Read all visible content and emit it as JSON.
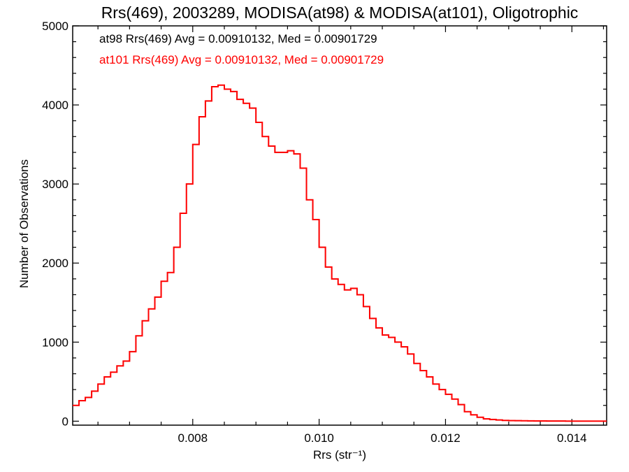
{
  "chart_data": {
    "type": "line",
    "title": "Rrs(469), 2003289, MODISA(at98) & MODISA(at101), Oligotrophic",
    "xlabel": "Rrs (str⁻¹)",
    "ylabel": "Number of Observations",
    "xlim": [
      0.0061,
      0.01455
    ],
    "ylim": [
      -50,
      5000
    ],
    "xticks": [
      0.008,
      0.01,
      0.012,
      0.014
    ],
    "xtick_labels": [
      "0.008",
      "0.010",
      "0.012",
      "0.014"
    ],
    "yticks": [
      0,
      1000,
      2000,
      3000,
      4000,
      5000
    ],
    "ytick_labels": [
      "0",
      "1000",
      "2000",
      "3000",
      "4000",
      "5000"
    ],
    "grid": false,
    "annotations": [
      {
        "text": "at98 Rrs(469) Avg = 0.00910132, Med = 0.00901729",
        "color": "#000000"
      },
      {
        "text": "at101 Rrs(469) Avg = 0.00910132, Med = 0.00901729",
        "color": "#ff0000"
      }
    ],
    "series": [
      {
        "color_hex": "#000000",
        "step": true,
        "x": [
          0.0061,
          0.0062,
          0.0063,
          0.0064,
          0.0065,
          0.0066,
          0.0067,
          0.0068,
          0.0069,
          0.007,
          0.0071,
          0.0072,
          0.0073,
          0.0074,
          0.0075,
          0.0076,
          0.0077,
          0.0078,
          0.0079,
          0.008,
          0.0081,
          0.0082,
          0.0083,
          0.0084,
          0.0085,
          0.0086,
          0.0087,
          0.0088,
          0.0089,
          0.009,
          0.0091,
          0.0092,
          0.0093,
          0.0094,
          0.0095,
          0.0096,
          0.0097,
          0.0098,
          0.0099,
          0.01,
          0.0101,
          0.0102,
          0.0103,
          0.0104,
          0.0105,
          0.0106,
          0.0107,
          0.0108,
          0.0109,
          0.011,
          0.0111,
          0.0112,
          0.0113,
          0.0114,
          0.0115,
          0.0116,
          0.0117,
          0.0118,
          0.0119,
          0.012,
          0.0121,
          0.0122,
          0.0123,
          0.0124,
          0.0125,
          0.0126,
          0.0127,
          0.0128,
          0.0129,
          0.013,
          0.0131,
          0.0132,
          0.0133,
          0.0134,
          0.0135,
          0.0136,
          0.0137,
          0.0138,
          0.0139,
          0.014,
          0.0141,
          0.0142,
          0.0143,
          0.0144,
          0.0145
        ],
        "y": [
          200,
          260,
          300,
          380,
          470,
          560,
          620,
          700,
          760,
          880,
          1080,
          1270,
          1420,
          1570,
          1770,
          1880,
          2200,
          2630,
          3000,
          3500,
          3850,
          4050,
          4230,
          4250,
          4200,
          4170,
          4070,
          4020,
          3960,
          3780,
          3600,
          3480,
          3400,
          3400,
          3420,
          3380,
          3200,
          2800,
          2550,
          2200,
          1950,
          1800,
          1730,
          1660,
          1680,
          1600,
          1450,
          1300,
          1180,
          1090,
          1060,
          1000,
          940,
          850,
          730,
          640,
          560,
          470,
          400,
          340,
          280,
          210,
          120,
          80,
          50,
          30,
          22,
          15,
          10,
          8,
          6,
          5,
          4,
          3,
          3,
          2,
          2,
          2,
          1,
          1,
          1,
          1,
          1,
          1,
          1
        ]
      },
      {
        "color_hex": "#ff0000",
        "step": true,
        "x": [
          0.0061,
          0.0062,
          0.0063,
          0.0064,
          0.0065,
          0.0066,
          0.0067,
          0.0068,
          0.0069,
          0.007,
          0.0071,
          0.0072,
          0.0073,
          0.0074,
          0.0075,
          0.0076,
          0.0077,
          0.0078,
          0.0079,
          0.008,
          0.0081,
          0.0082,
          0.0083,
          0.0084,
          0.0085,
          0.0086,
          0.0087,
          0.0088,
          0.0089,
          0.009,
          0.0091,
          0.0092,
          0.0093,
          0.0094,
          0.0095,
          0.0096,
          0.0097,
          0.0098,
          0.0099,
          0.01,
          0.0101,
          0.0102,
          0.0103,
          0.0104,
          0.0105,
          0.0106,
          0.0107,
          0.0108,
          0.0109,
          0.011,
          0.0111,
          0.0112,
          0.0113,
          0.0114,
          0.0115,
          0.0116,
          0.0117,
          0.0118,
          0.0119,
          0.012,
          0.0121,
          0.0122,
          0.0123,
          0.0124,
          0.0125,
          0.0126,
          0.0127,
          0.0128,
          0.0129,
          0.013,
          0.0131,
          0.0132,
          0.0133,
          0.0134,
          0.0135,
          0.0136,
          0.0137,
          0.0138,
          0.0139,
          0.014,
          0.0141,
          0.0142,
          0.0143,
          0.0144,
          0.0145
        ],
        "y": [
          200,
          260,
          300,
          380,
          470,
          560,
          620,
          700,
          760,
          880,
          1080,
          1270,
          1420,
          1570,
          1770,
          1880,
          2200,
          2630,
          3000,
          3500,
          3850,
          4050,
          4230,
          4250,
          4200,
          4170,
          4070,
          4020,
          3960,
          3780,
          3600,
          3480,
          3400,
          3400,
          3420,
          3380,
          3200,
          2800,
          2550,
          2200,
          1950,
          1800,
          1730,
          1660,
          1680,
          1600,
          1450,
          1300,
          1180,
          1090,
          1060,
          1000,
          940,
          850,
          730,
          640,
          560,
          470,
          400,
          340,
          280,
          210,
          120,
          80,
          50,
          30,
          22,
          15,
          10,
          8,
          6,
          5,
          4,
          3,
          3,
          2,
          2,
          2,
          1,
          1,
          1,
          1,
          1,
          1,
          1
        ]
      }
    ]
  }
}
